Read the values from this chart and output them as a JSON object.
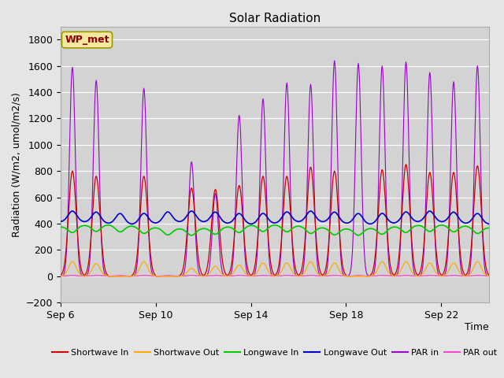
{
  "title": "Solar Radiation",
  "ylabel": "Radiation (W/m2, umol/m2/s)",
  "xlabel": "Time",
  "ylim": [
    -200,
    1900
  ],
  "yticks": [
    -200,
    0,
    200,
    400,
    600,
    800,
    1000,
    1200,
    1400,
    1600,
    1800
  ],
  "bg_color": "#e5e5e5",
  "plot_bg_color": "#d3d3d3",
  "station_label": "WP_met",
  "station_box_bg": "#f5e6a0",
  "station_box_edge": "#999900",
  "station_text_color": "#8b0000",
  "x_tick_labels": [
    "Sep 6",
    "Sep 10",
    "Sep 14",
    "Sep 18",
    "Sep 22"
  ],
  "x_tick_positions": [
    0,
    4,
    8,
    12,
    16
  ],
  "num_days": 18,
  "colors": {
    "shortwave_in": "#cc0000",
    "shortwave_out": "#ffaa00",
    "longwave_in": "#00cc00",
    "longwave_out": "#0000cc",
    "par_in": "#9900cc",
    "par_out": "#ff44cc"
  },
  "legend_labels": [
    "Shortwave In",
    "Shortwave Out",
    "Longwave In",
    "Longwave Out",
    "PAR in",
    "PAR out"
  ],
  "sw_in_peaks": [
    800,
    760,
    0,
    760,
    0,
    670,
    660,
    690,
    760,
    760,
    830,
    800,
    0,
    810,
    850,
    790,
    790,
    840
  ],
  "sw_out_peaks": [
    110,
    95,
    0,
    110,
    0,
    60,
    75,
    85,
    100,
    100,
    110,
    100,
    0,
    110,
    110,
    100,
    100,
    110
  ],
  "par_in_peaks": [
    1590,
    1490,
    0,
    1430,
    0,
    870,
    630,
    1225,
    1350,
    1470,
    1460,
    1640,
    1620,
    1600,
    1630,
    1550,
    1480,
    1600
  ],
  "lw_in_base": 375,
  "lw_out_base": 405,
  "lw_in_dip": 50,
  "lw_out_peak": 80,
  "title_fontsize": 11,
  "label_fontsize": 9,
  "tick_fontsize": 9,
  "legend_fontsize": 8
}
